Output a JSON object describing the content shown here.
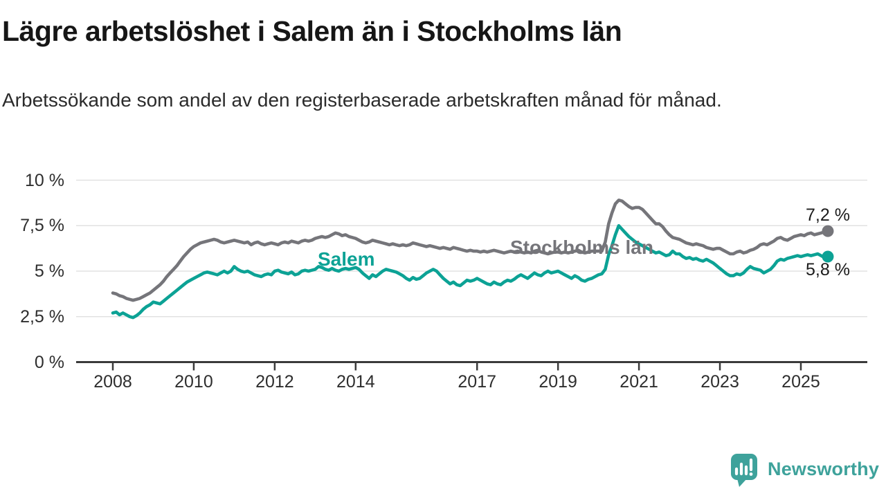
{
  "header": {
    "title": "Lägre arbetslöshet i Salem än i Stockholms län",
    "subtitle": "Arbetssökande som andel av den registerbaserade arbetskraften månad för månad."
  },
  "chart_data": {
    "type": "line",
    "title": "Lägre arbetslöshet i Salem än i Stockholms län",
    "subtitle": "Arbetssökande som andel av den registerbaserade arbetskraften månad för månad.",
    "x_unit": "month",
    "x_start_year": 2008,
    "points_per_year": 12,
    "x_end": "2025-09",
    "ylim": [
      0,
      10
    ],
    "grid": "horizontal",
    "legend_position": "inline-labels",
    "y_ticks": [
      {
        "value": 0,
        "label": "0 %"
      },
      {
        "value": 2.5,
        "label": "2,5 %"
      },
      {
        "value": 5,
        "label": "5 %"
      },
      {
        "value": 7.5,
        "label": "7,5 %"
      },
      {
        "value": 10,
        "label": "10 %"
      }
    ],
    "x_ticks": [
      {
        "year": 2008,
        "label": "2008"
      },
      {
        "year": 2010,
        "label": "2010"
      },
      {
        "year": 2012,
        "label": "2012"
      },
      {
        "year": 2014,
        "label": "2014"
      },
      {
        "year": 2017,
        "label": "2017"
      },
      {
        "year": 2019,
        "label": "2019"
      },
      {
        "year": 2021,
        "label": "2021"
      },
      {
        "year": 2023,
        "label": "2023"
      },
      {
        "year": 2025,
        "label": "2025"
      }
    ],
    "series": [
      {
        "id": "stockholms-lan",
        "name": "Stockholms län",
        "color": "#75757a",
        "end_label": "7,2 %",
        "end_value": 7.2,
        "values": [
          3.8,
          3.75,
          3.65,
          3.6,
          3.5,
          3.45,
          3.4,
          3.45,
          3.5,
          3.6,
          3.7,
          3.8,
          3.95,
          4.1,
          4.25,
          4.45,
          4.7,
          4.9,
          5.1,
          5.3,
          5.55,
          5.8,
          6.0,
          6.2,
          6.35,
          6.45,
          6.55,
          6.6,
          6.65,
          6.7,
          6.75,
          6.7,
          6.6,
          6.55,
          6.6,
          6.65,
          6.7,
          6.65,
          6.6,
          6.55,
          6.6,
          6.45,
          6.55,
          6.6,
          6.5,
          6.45,
          6.5,
          6.55,
          6.5,
          6.45,
          6.55,
          6.6,
          6.55,
          6.65,
          6.6,
          6.55,
          6.65,
          6.7,
          6.65,
          6.7,
          6.8,
          6.85,
          6.9,
          6.85,
          6.9,
          7.0,
          7.1,
          7.05,
          6.95,
          7.0,
          6.9,
          6.85,
          6.8,
          6.7,
          6.6,
          6.55,
          6.6,
          6.7,
          6.65,
          6.6,
          6.55,
          6.5,
          6.45,
          6.5,
          6.45,
          6.4,
          6.45,
          6.4,
          6.45,
          6.55,
          6.5,
          6.45,
          6.4,
          6.35,
          6.4,
          6.35,
          6.3,
          6.25,
          6.3,
          6.25,
          6.2,
          6.3,
          6.25,
          6.2,
          6.15,
          6.1,
          6.15,
          6.1,
          6.1,
          6.05,
          6.1,
          6.05,
          6.1,
          6.15,
          6.1,
          6.05,
          6.0,
          6.05,
          6.1,
          6.05,
          6.1,
          6.05,
          6.0,
          6.05,
          6.0,
          6.1,
          6.15,
          6.05,
          6.0,
          5.95,
          6.0,
          6.05,
          6.05,
          6.0,
          6.05,
          6.0,
          6.05,
          6.1,
          6.15,
          6.05,
          6.0,
          6.05,
          6.1,
          6.1,
          6.1,
          6.1,
          6.6,
          7.6,
          8.2,
          8.7,
          8.9,
          8.85,
          8.7,
          8.55,
          8.45,
          8.5,
          8.5,
          8.4,
          8.2,
          8.0,
          7.8,
          7.6,
          7.6,
          7.45,
          7.2,
          7.0,
          6.85,
          6.8,
          6.75,
          6.65,
          6.55,
          6.5,
          6.45,
          6.5,
          6.45,
          6.4,
          6.3,
          6.25,
          6.2,
          6.25,
          6.25,
          6.15,
          6.05,
          5.95,
          5.95,
          6.05,
          6.1,
          6.0,
          6.05,
          6.15,
          6.2,
          6.3,
          6.45,
          6.5,
          6.45,
          6.55,
          6.65,
          6.8,
          6.85,
          6.75,
          6.7,
          6.8,
          6.9,
          6.95,
          7.0,
          6.95,
          7.05,
          7.1,
          7.0,
          7.05,
          7.1,
          7.15,
          7.2
        ]
      },
      {
        "id": "salem",
        "name": "Salem",
        "color": "#0ca295",
        "end_label": "5,8 %",
        "end_value": 5.8,
        "values": [
          2.7,
          2.75,
          2.6,
          2.7,
          2.6,
          2.5,
          2.45,
          2.55,
          2.7,
          2.9,
          3.05,
          3.15,
          3.3,
          3.25,
          3.2,
          3.35,
          3.5,
          3.65,
          3.8,
          3.95,
          4.1,
          4.25,
          4.4,
          4.5,
          4.6,
          4.7,
          4.8,
          4.9,
          4.95,
          4.9,
          4.85,
          4.8,
          4.9,
          5.0,
          4.9,
          5.0,
          5.25,
          5.1,
          5.0,
          4.95,
          5.0,
          4.9,
          4.8,
          4.75,
          4.7,
          4.8,
          4.85,
          4.8,
          5.0,
          5.05,
          4.95,
          4.9,
          4.85,
          4.95,
          4.8,
          4.85,
          5.0,
          5.05,
          5.0,
          5.05,
          5.1,
          5.25,
          5.2,
          5.1,
          5.05,
          5.15,
          5.05,
          5.0,
          5.1,
          5.15,
          5.1,
          5.15,
          5.2,
          5.1,
          4.9,
          4.75,
          4.6,
          4.8,
          4.7,
          4.85,
          5.0,
          5.1,
          5.05,
          5.0,
          4.95,
          4.85,
          4.75,
          4.6,
          4.5,
          4.65,
          4.55,
          4.6,
          4.75,
          4.9,
          5.0,
          5.1,
          5.0,
          4.8,
          4.6,
          4.45,
          4.3,
          4.4,
          4.25,
          4.2,
          4.35,
          4.5,
          4.45,
          4.5,
          4.6,
          4.5,
          4.4,
          4.3,
          4.25,
          4.4,
          4.3,
          4.25,
          4.4,
          4.5,
          4.45,
          4.55,
          4.7,
          4.8,
          4.7,
          4.6,
          4.75,
          4.9,
          4.8,
          4.75,
          4.9,
          5.0,
          4.9,
          4.95,
          5.0,
          4.9,
          4.8,
          4.7,
          4.6,
          4.75,
          4.65,
          4.5,
          4.45,
          4.55,
          4.6,
          4.7,
          4.8,
          4.85,
          5.1,
          5.9,
          6.4,
          7.0,
          7.5,
          7.3,
          7.1,
          6.9,
          6.75,
          6.6,
          6.5,
          6.4,
          6.3,
          6.2,
          6.1,
          6.0,
          6.05,
          5.95,
          5.85,
          5.9,
          6.1,
          5.95,
          5.95,
          5.8,
          5.7,
          5.75,
          5.65,
          5.7,
          5.6,
          5.55,
          5.65,
          5.55,
          5.45,
          5.3,
          5.15,
          5.0,
          4.85,
          4.75,
          4.75,
          4.85,
          4.8,
          4.9,
          5.1,
          5.25,
          5.15,
          5.1,
          5.05,
          4.9,
          5.0,
          5.1,
          5.3,
          5.55,
          5.65,
          5.6,
          5.7,
          5.75,
          5.8,
          5.85,
          5.8,
          5.85,
          5.9,
          5.85,
          5.9,
          5.95,
          5.85,
          5.75,
          5.8
        ]
      }
    ]
  },
  "footer": {
    "logo_text": "Newsworthy",
    "logo_color": "#3ea29b"
  }
}
